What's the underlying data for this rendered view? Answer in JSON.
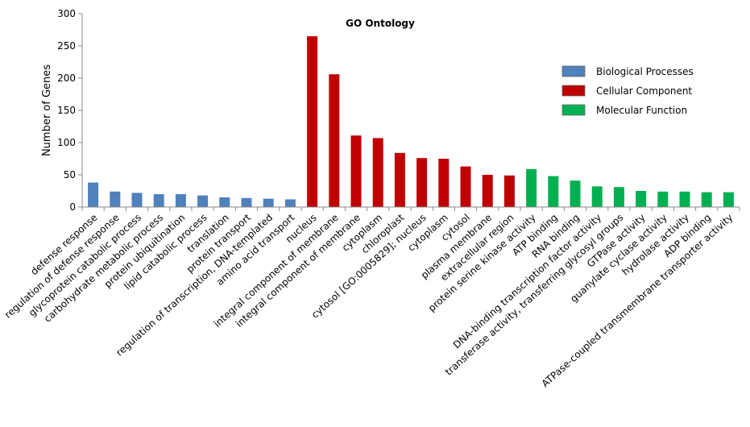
{
  "chart_data": {
    "type": "bar",
    "title": "GO Ontology",
    "xlabel": "",
    "ylabel": "Number of Genes",
    "ylim": [
      0,
      300
    ],
    "yticks": [
      0,
      50,
      100,
      150,
      200,
      250,
      300
    ],
    "legend_position": "top-right",
    "series": [
      {
        "name": "Biological Processes",
        "color": "#4f81bd"
      },
      {
        "name": "Cellular Component",
        "color": "#c00000"
      },
      {
        "name": "Molecular Function",
        "color": "#00b050"
      }
    ],
    "categories": [
      {
        "label": "defense response",
        "value": 38,
        "series": 0
      },
      {
        "label": "regulation of defense response",
        "value": 24,
        "series": 0
      },
      {
        "label": "glycoprotein catabolic process",
        "value": 22,
        "series": 0
      },
      {
        "label": "carbohydrate metabolic process",
        "value": 20,
        "series": 0
      },
      {
        "label": "protein ubiquitination",
        "value": 20,
        "series": 0
      },
      {
        "label": "lipid catabolic process",
        "value": 18,
        "series": 0
      },
      {
        "label": "translation",
        "value": 15,
        "series": 0
      },
      {
        "label": "protein transport",
        "value": 14,
        "series": 0
      },
      {
        "label": "regulation of transcription, DNA-templated",
        "value": 13,
        "series": 0
      },
      {
        "label": "amino acid transport",
        "value": 12,
        "series": 0
      },
      {
        "label": "nucleus",
        "value": 265,
        "series": 1
      },
      {
        "label": "integral component of membrane",
        "value": 206,
        "series": 1
      },
      {
        "label": "integral component of membrane",
        "value": 111,
        "series": 1
      },
      {
        "label": "cytoplasm",
        "value": 107,
        "series": 1
      },
      {
        "label": "chloroplast",
        "value": 84,
        "series": 1
      },
      {
        "label": "cytosol [GO:0005829]; nucleus",
        "value": 76,
        "series": 1
      },
      {
        "label": "cytoplasm",
        "value": 75,
        "series": 1
      },
      {
        "label": "cytosol",
        "value": 63,
        "series": 1
      },
      {
        "label": "plasma membrane",
        "value": 50,
        "series": 1
      },
      {
        "label": "extracellular region",
        "value": 49,
        "series": 1
      },
      {
        "label": "protein serine kinase activity",
        "value": 59,
        "series": 2
      },
      {
        "label": "ATP binding",
        "value": 48,
        "series": 2
      },
      {
        "label": "RNA binding",
        "value": 41,
        "series": 2
      },
      {
        "label": "DNA-binding transcription factor activity",
        "value": 32,
        "series": 2
      },
      {
        "label": "transferase activity, transferring glycosyl groups",
        "value": 31,
        "series": 2
      },
      {
        "label": "GTPase activity",
        "value": 25,
        "series": 2
      },
      {
        "label": "guanylate cyclase activity",
        "value": 24,
        "series": 2
      },
      {
        "label": "hydrolase activity",
        "value": 24,
        "series": 2
      },
      {
        "label": "ADP binding",
        "value": 23,
        "series": 2
      },
      {
        "label": "ATPase-coupled transmembrane transporter activity",
        "value": 23,
        "series": 2
      }
    ]
  }
}
